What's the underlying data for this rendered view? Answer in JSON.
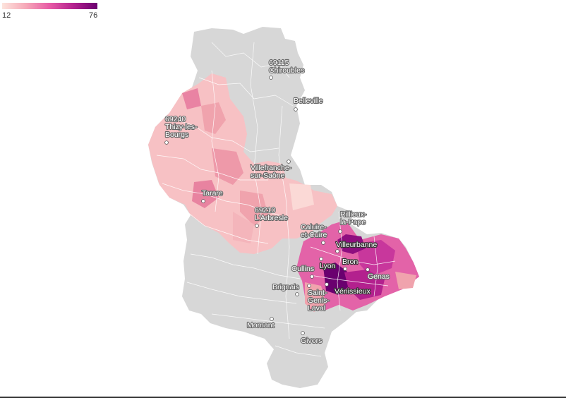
{
  "legend": {
    "min": "12",
    "max": "76"
  },
  "colors": {
    "empty": "#d7d7d7",
    "scale": [
      "#fde4dc",
      "#f6a8b8",
      "#e75aa5",
      "#b3218e",
      "#6a006f"
    ]
  },
  "cities": {
    "chiroubles": [
      "69115",
      "Chiroubles"
    ],
    "belleville": [
      "Belleville"
    ],
    "thizy": [
      "69240",
      "Thizy-les-",
      "Bourgs"
    ],
    "villefranche": [
      "Villefranche-",
      "sur-Saône"
    ],
    "tarare": [
      "Tarare"
    ],
    "arbresle": [
      "69210",
      "L'Arbresle"
    ],
    "rillieux": [
      "Rillieux-",
      "la-Pape"
    ],
    "caluire": [
      "Caluire-",
      "et-Cuire"
    ],
    "villeurbanne": [
      "Villeurbanne"
    ],
    "oullins": [
      "Oullins"
    ],
    "lyon": [
      "Lyon"
    ],
    "bron": [
      "Bron"
    ],
    "genas": [
      "Genas"
    ],
    "brignais": [
      "Brignais"
    ],
    "saint_genis": [
      "Saint-",
      "Genis-",
      "Laval"
    ],
    "venissieux": [
      "Vénissieux"
    ],
    "mornant": [
      "Mornant"
    ],
    "givors": [
      "Givors"
    ]
  }
}
